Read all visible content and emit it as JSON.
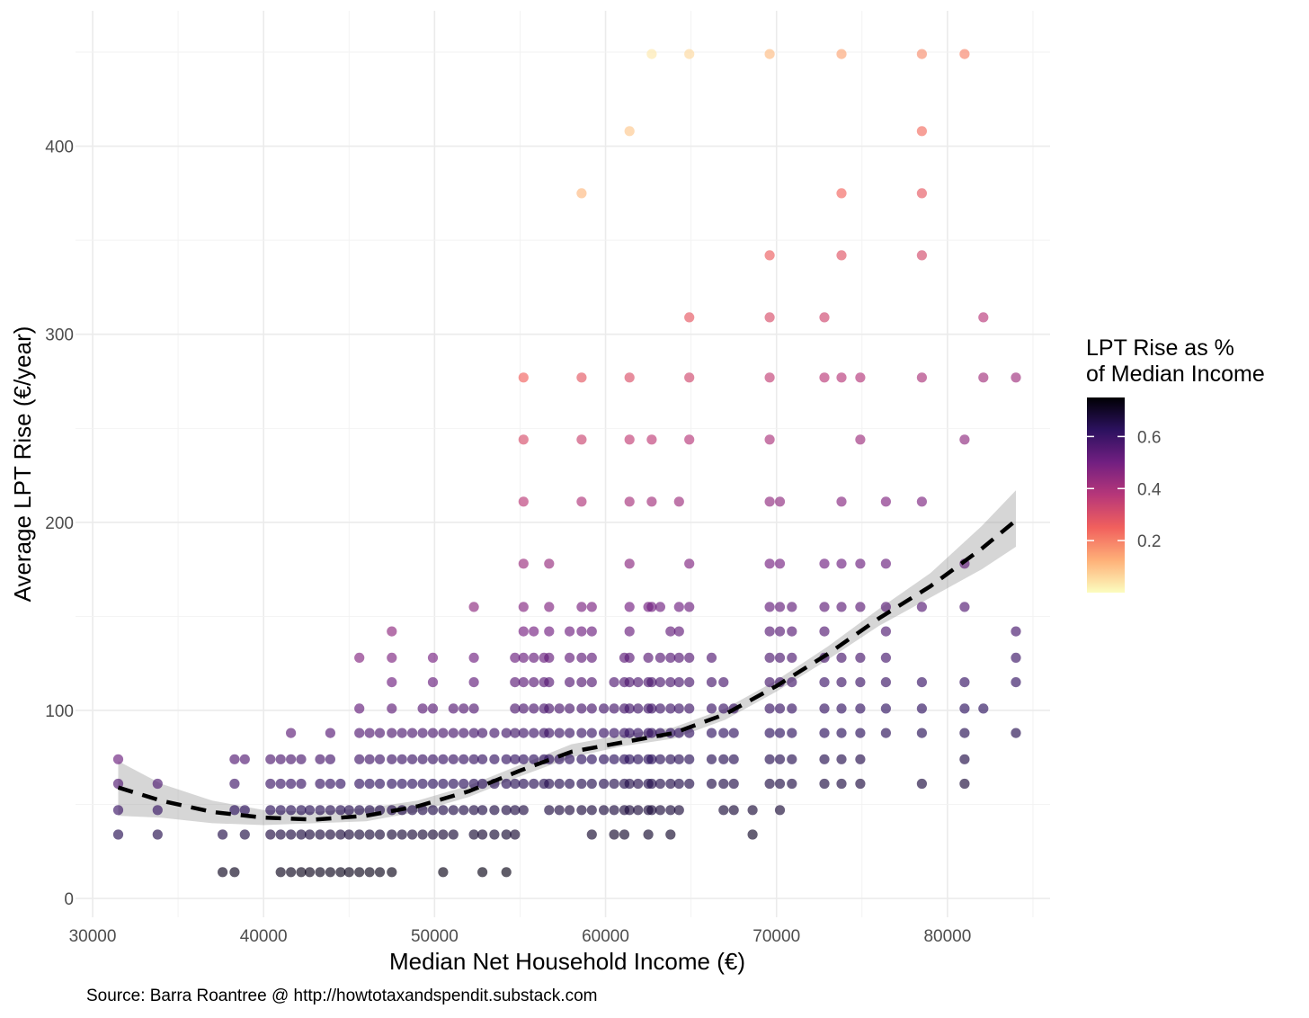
{
  "chart_data": {
    "type": "scatter",
    "title": "",
    "xlabel": "Median Net Household Income (€)",
    "ylabel": "Average LPT Rise (€/year)",
    "caption": "Source: Barra Roantree @ http://howtotaxandspendit.substack.com",
    "xlim": [
      29000,
      86000
    ],
    "ylim": [
      -10,
      472
    ],
    "x_ticks": [
      30000,
      40000,
      50000,
      60000,
      70000,
      80000
    ],
    "y_ticks": [
      0,
      100,
      200,
      300,
      400
    ],
    "x_tick_labels": [
      "30000",
      "40000",
      "50000",
      "60000",
      "70000",
      "80000"
    ],
    "y_tick_labels": [
      "0",
      "100",
      "200",
      "300",
      "400"
    ],
    "grid": true,
    "legend": {
      "title_line1": "LPT Rise as %",
      "title_line2": "of Median Income",
      "placement": "right",
      "color_min": 0.0,
      "color_max": 0.75,
      "ticks": [
        0.2,
        0.4,
        0.6
      ],
      "tick_labels": [
        "0.2",
        "0.4",
        "0.6"
      ],
      "palette": [
        "#fcfdbf",
        "#feb078",
        "#f1605d",
        "#b73779",
        "#721f81",
        "#2c115f",
        "#000004"
      ]
    },
    "columns": [
      {
        "x": 31500,
        "y": [
          34,
          47,
          61,
          74
        ]
      },
      {
        "x": 33800,
        "y": [
          34,
          47,
          61
        ]
      },
      {
        "x": 37600,
        "y": [
          14,
          34
        ]
      },
      {
        "x": 38300,
        "y": [
          14,
          47,
          61,
          74
        ]
      },
      {
        "x": 38900,
        "y": [
          34,
          47,
          74
        ]
      },
      {
        "x": 40400,
        "y": [
          34,
          47,
          61,
          74
        ]
      },
      {
        "x": 41000,
        "y": [
          14,
          34,
          47,
          61,
          74
        ]
      },
      {
        "x": 41600,
        "y": [
          14,
          34,
          47,
          61,
          74,
          88
        ]
      },
      {
        "x": 42200,
        "y": [
          14,
          34,
          47,
          61,
          74
        ]
      },
      {
        "x": 42700,
        "y": [
          14,
          34,
          47
        ]
      },
      {
        "x": 43300,
        "y": [
          14,
          34,
          47,
          61,
          74
        ]
      },
      {
        "x": 43900,
        "y": [
          14,
          34,
          47,
          61,
          74,
          88
        ]
      },
      {
        "x": 44500,
        "y": [
          14,
          34,
          47,
          61
        ]
      },
      {
        "x": 45000,
        "y": [
          14,
          34,
          47
        ]
      },
      {
        "x": 45600,
        "y": [
          14,
          34,
          47,
          61,
          74,
          88,
          101,
          128
        ]
      },
      {
        "x": 46200,
        "y": [
          14,
          34,
          47,
          61,
          74,
          88
        ]
      },
      {
        "x": 46800,
        "y": [
          14,
          34,
          47,
          61,
          74,
          88
        ]
      },
      {
        "x": 47500,
        "y": [
          14,
          34,
          47,
          61,
          74,
          88,
          101,
          115,
          128,
          142
        ]
      },
      {
        "x": 48100,
        "y": [
          34,
          47,
          61,
          74,
          88
        ]
      },
      {
        "x": 48700,
        "y": [
          34,
          47,
          61,
          74,
          88
        ]
      },
      {
        "x": 49300,
        "y": [
          34,
          47,
          61,
          74,
          88,
          101
        ]
      },
      {
        "x": 49900,
        "y": [
          34,
          47,
          61,
          74,
          88,
          101,
          115,
          128
        ]
      },
      {
        "x": 50500,
        "y": [
          14,
          34,
          47,
          61,
          74,
          88
        ]
      },
      {
        "x": 51100,
        "y": [
          34,
          47,
          61,
          74,
          88,
          101
        ]
      },
      {
        "x": 51700,
        "y": [
          47,
          61,
          74,
          88,
          101
        ]
      },
      {
        "x": 52300,
        "y": [
          34,
          47,
          61,
          74,
          88,
          101,
          115,
          128,
          155
        ]
      },
      {
        "x": 52800,
        "y": [
          14,
          34,
          47,
          61,
          74,
          88
        ]
      },
      {
        "x": 53500,
        "y": [
          34,
          47,
          61,
          74,
          88
        ]
      },
      {
        "x": 54200,
        "y": [
          14,
          34,
          47,
          61,
          74,
          88
        ]
      },
      {
        "x": 54700,
        "y": [
          34,
          47,
          61,
          74,
          88,
          101,
          115,
          128
        ]
      },
      {
        "x": 55200,
        "y": [
          47,
          61,
          74,
          88,
          101,
          115,
          128,
          142,
          155,
          178,
          211,
          244,
          277
        ]
      },
      {
        "x": 55800,
        "y": [
          61,
          74,
          88,
          101,
          115,
          128,
          142
        ]
      },
      {
        "x": 56400,
        "y": [
          61,
          74,
          88,
          101,
          115,
          128
        ]
      },
      {
        "x": 56700,
        "y": [
          47,
          61,
          74,
          88,
          101,
          115,
          128,
          142,
          155,
          178
        ]
      },
      {
        "x": 57300,
        "y": [
          47,
          61,
          74,
          88,
          101
        ]
      },
      {
        "x": 57900,
        "y": [
          47,
          61,
          74,
          88,
          101,
          115,
          128,
          142
        ]
      },
      {
        "x": 58600,
        "y": [
          47,
          61,
          74,
          88,
          101,
          115,
          128,
          142,
          155,
          211,
          244,
          277,
          375
        ]
      },
      {
        "x": 59200,
        "y": [
          34,
          47,
          61,
          74,
          88,
          101,
          115,
          128,
          142,
          155
        ]
      },
      {
        "x": 59900,
        "y": [
          47,
          61,
          74,
          88,
          101
        ]
      },
      {
        "x": 60500,
        "y": [
          34,
          47,
          61,
          74,
          88,
          101,
          115
        ]
      },
      {
        "x": 61100,
        "y": [
          34,
          47,
          61,
          74,
          88,
          101,
          115,
          128
        ]
      },
      {
        "x": 61400,
        "y": [
          47,
          61,
          74,
          88,
          101,
          115,
          128,
          142,
          155,
          178,
          211,
          244,
          277,
          408
        ]
      },
      {
        "x": 61900,
        "y": [
          47,
          61,
          74,
          88,
          101,
          115
        ]
      },
      {
        "x": 62500,
        "y": [
          34,
          47,
          61,
          74,
          88,
          101,
          115,
          128,
          155
        ]
      },
      {
        "x": 62700,
        "y": [
          47,
          61,
          74,
          88,
          101,
          115,
          155,
          211,
          244,
          449
        ]
      },
      {
        "x": 63200,
        "y": [
          47,
          61,
          74,
          88,
          101,
          115,
          128,
          155
        ]
      },
      {
        "x": 63800,
        "y": [
          34,
          47,
          61,
          74,
          88,
          101,
          115,
          128,
          142
        ]
      },
      {
        "x": 64300,
        "y": [
          47,
          61,
          74,
          88,
          101,
          115,
          128,
          142,
          155,
          211
        ]
      },
      {
        "x": 64900,
        "y": [
          61,
          74,
          88,
          101,
          115,
          128,
          155,
          178,
          244,
          277,
          309,
          449
        ]
      },
      {
        "x": 66200,
        "y": [
          61,
          74,
          88,
          101,
          115,
          128
        ]
      },
      {
        "x": 66900,
        "y": [
          47,
          61,
          74,
          88,
          101,
          115
        ]
      },
      {
        "x": 67500,
        "y": [
          47,
          61,
          74,
          88,
          101
        ]
      },
      {
        "x": 68600,
        "y": [
          34,
          47
        ]
      },
      {
        "x": 69600,
        "y": [
          61,
          74,
          88,
          101,
          115,
          128,
          142,
          155,
          178,
          211,
          244,
          277,
          309,
          342,
          449
        ]
      },
      {
        "x": 70200,
        "y": [
          47,
          61,
          74,
          88,
          101,
          115,
          128,
          142,
          155,
          178,
          211
        ]
      },
      {
        "x": 70900,
        "y": [
          61,
          74,
          88,
          101,
          115,
          128,
          142,
          155
        ]
      },
      {
        "x": 72800,
        "y": [
          61,
          74,
          88,
          101,
          115,
          128,
          142,
          155,
          178,
          277,
          309
        ]
      },
      {
        "x": 73800,
        "y": [
          61,
          74,
          88,
          101,
          115,
          128,
          155,
          178,
          211,
          277,
          342,
          375,
          449
        ]
      },
      {
        "x": 74900,
        "y": [
          61,
          74,
          88,
          101,
          115,
          128,
          155,
          178,
          244,
          277
        ]
      },
      {
        "x": 76400,
        "y": [
          88,
          101,
          115,
          128,
          142,
          155,
          178,
          211
        ]
      },
      {
        "x": 78500,
        "y": [
          61,
          88,
          101,
          115,
          155,
          211,
          277,
          342,
          375,
          408,
          449
        ]
      },
      {
        "x": 81000,
        "y": [
          61,
          74,
          88,
          101,
          115,
          155,
          178,
          244,
          449
        ]
      },
      {
        "x": 82100,
        "y": [
          101,
          277,
          309
        ]
      },
      {
        "x": 84000,
        "y": [
          88,
          115,
          128,
          142,
          277
        ]
      }
    ],
    "smooth_fit": {
      "style": "dashed",
      "x": [
        31500,
        34000,
        37000,
        40000,
        43000,
        46000,
        49000,
        52000,
        55000,
        58000,
        61000,
        64000,
        67000,
        70000,
        73000,
        76000,
        79000,
        82000,
        84000
      ],
      "y": [
        59,
        52,
        46,
        43,
        42,
        44,
        49,
        57,
        68,
        78,
        83,
        88,
        98,
        113,
        130,
        149,
        166,
        186,
        201
      ],
      "ci_low": [
        44,
        43,
        40,
        39,
        40,
        41,
        46,
        54,
        65,
        75,
        81,
        85,
        95,
        110,
        127,
        145,
        160,
        175,
        187
      ],
      "ci_high": [
        73,
        61,
        52,
        47,
        46,
        48,
        52,
        60,
        71,
        82,
        87,
        91,
        101,
        116,
        134,
        154,
        173,
        198,
        217
      ]
    }
  }
}
